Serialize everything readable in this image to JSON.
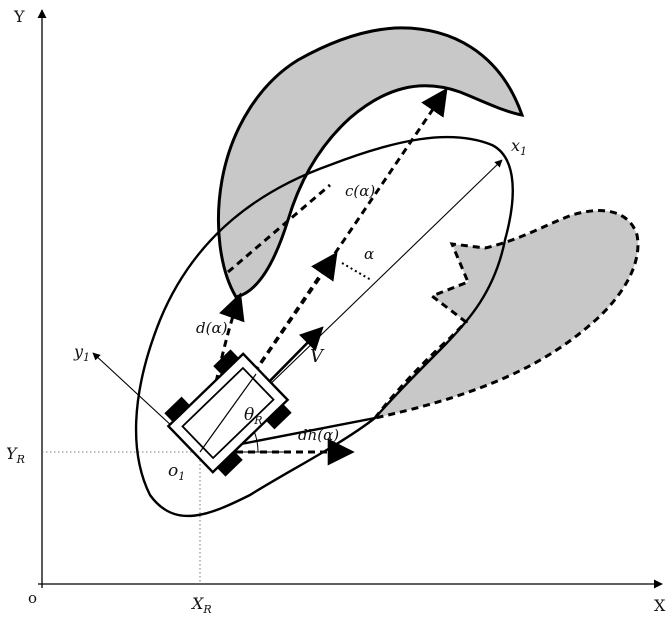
{
  "axes": {
    "x_label": "X",
    "y_label": "Y",
    "origin_label": "o"
  },
  "robot_frame": {
    "origin_label": "o",
    "origin_subscript": "1",
    "x1_label": "x",
    "x1_subscript": "1",
    "y1_label": "y",
    "y1_subscript": "1"
  },
  "reference": {
    "XR_main": "X",
    "XR_sub": "R",
    "YR_main": "Y",
    "YR_sub": "R"
  },
  "annotations": {
    "theta_main": "θ",
    "theta_sub": "R",
    "velocity": "V",
    "alpha": "α",
    "c_alpha": "c(α)",
    "d_alpha": "d(α)",
    "dh_alpha": "dh(α)"
  },
  "colors": {
    "obstacle_fill": "#c8c8c8",
    "stroke": "#000000"
  }
}
